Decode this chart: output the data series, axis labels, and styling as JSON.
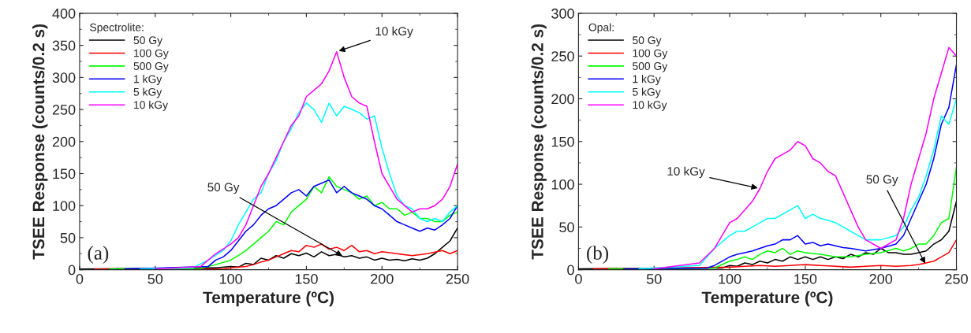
{
  "chart_data": [
    {
      "type": "line",
      "xlabel": "Temperature (ºC)",
      "ylabel": "TSEE Response (counts/0.2 s)",
      "legend_title": "Spectrolite:",
      "legend": "top left",
      "grid": false,
      "xlim": [
        0,
        250
      ],
      "ylim": [
        0,
        400
      ],
      "xticks": [
        0,
        50,
        100,
        150,
        200,
        250
      ],
      "yticks": [
        0,
        50,
        100,
        150,
        200,
        250,
        300,
        350,
        400
      ],
      "annotations": [
        "(a)",
        {
          "text": "10 kGy",
          "x": 170,
          "y": 340
        },
        {
          "text": "50 Gy",
          "x": 175,
          "y": 20
        }
      ],
      "series": [
        {
          "name": "50 Gy",
          "color": "#000000",
          "x": [
            0,
            90,
            100,
            105,
            110,
            115,
            120,
            125,
            130,
            135,
            140,
            145,
            150,
            155,
            160,
            165,
            170,
            175,
            180,
            185,
            190,
            195,
            200,
            205,
            210,
            215,
            220,
            225,
            230,
            235,
            240,
            245,
            250
          ],
          "values": [
            1,
            3,
            5,
            4,
            10,
            8,
            18,
            15,
            22,
            18,
            25,
            22,
            26,
            20,
            28,
            22,
            24,
            20,
            22,
            18,
            20,
            15,
            18,
            15,
            16,
            14,
            17,
            15,
            18,
            25,
            35,
            45,
            65
          ]
        },
        {
          "name": "100 Gy",
          "color": "#ff0000",
          "x": [
            10,
            95,
            100,
            110,
            115,
            120,
            125,
            130,
            135,
            140,
            145,
            150,
            155,
            160,
            165,
            170,
            175,
            180,
            185,
            190,
            195,
            200,
            210,
            220,
            230,
            240,
            245,
            250
          ],
          "values": [
            1,
            1,
            3,
            5,
            8,
            12,
            15,
            20,
            25,
            30,
            28,
            38,
            35,
            40,
            32,
            35,
            30,
            38,
            28,
            30,
            25,
            28,
            25,
            22,
            25,
            30,
            25,
            30
          ]
        },
        {
          "name": "500 Gy",
          "color": "#00ff00",
          "x": [
            20,
            80,
            90,
            100,
            105,
            110,
            115,
            120,
            125,
            130,
            135,
            140,
            145,
            150,
            155,
            160,
            165,
            170,
            175,
            180,
            185,
            190,
            195,
            200,
            205,
            210,
            215,
            220,
            225,
            230,
            235,
            240,
            245,
            250
          ],
          "values": [
            1,
            2,
            8,
            15,
            22,
            30,
            40,
            50,
            60,
            75,
            70,
            90,
            100,
            110,
            130,
            120,
            145,
            130,
            125,
            120,
            110,
            115,
            100,
            105,
            95,
            95,
            85,
            90,
            80,
            80,
            75,
            75,
            85,
            90
          ]
        },
        {
          "name": "1 kGy",
          "color": "#0000ff",
          "x": [
            30,
            85,
            90,
            95,
            100,
            105,
            110,
            115,
            120,
            125,
            130,
            135,
            140,
            145,
            150,
            155,
            160,
            165,
            170,
            175,
            180,
            185,
            190,
            195,
            200,
            205,
            210,
            215,
            220,
            225,
            230,
            235,
            240,
            245,
            250
          ],
          "values": [
            1,
            5,
            15,
            20,
            30,
            45,
            60,
            70,
            85,
            95,
            100,
            110,
            120,
            125,
            115,
            130,
            135,
            140,
            120,
            130,
            120,
            115,
            110,
            100,
            95,
            85,
            75,
            70,
            65,
            60,
            65,
            62,
            70,
            80,
            100
          ]
        },
        {
          "name": "5 kGy",
          "color": "#00ffff",
          "x": [
            40,
            75,
            85,
            95,
            100,
            105,
            110,
            115,
            120,
            125,
            130,
            135,
            140,
            145,
            150,
            155,
            160,
            165,
            170,
            175,
            180,
            185,
            190,
            195,
            200,
            205,
            210,
            215,
            220,
            225,
            230,
            235,
            240,
            245,
            250
          ],
          "values": [
            1,
            3,
            15,
            30,
            45,
            70,
            90,
            110,
            120,
            150,
            170,
            200,
            220,
            245,
            260,
            250,
            230,
            260,
            240,
            255,
            250,
            245,
            235,
            240,
            190,
            150,
            115,
            100,
            95,
            80,
            75,
            80,
            75,
            90,
            100
          ]
        },
        {
          "name": "10 kGy",
          "color": "#ff00ff",
          "x": [
            50,
            80,
            90,
            100,
            105,
            110,
            115,
            120,
            125,
            130,
            135,
            140,
            145,
            150,
            155,
            160,
            165,
            170,
            175,
            180,
            185,
            190,
            195,
            200,
            205,
            210,
            215,
            220,
            225,
            230,
            235,
            240,
            245,
            250
          ],
          "values": [
            1,
            5,
            25,
            40,
            50,
            70,
            100,
            130,
            150,
            175,
            200,
            225,
            240,
            270,
            280,
            290,
            310,
            340,
            300,
            270,
            260,
            255,
            200,
            150,
            130,
            110,
            100,
            90,
            95,
            95,
            100,
            110,
            130,
            165
          ]
        }
      ]
    },
    {
      "type": "line",
      "xlabel": "Temperature (ºC)",
      "ylabel": "TSEE Response (counts/0.2 s)",
      "legend_title": "Opal:",
      "legend": "top left",
      "grid": false,
      "xlim": [
        0,
        250
      ],
      "ylim": [
        0,
        300
      ],
      "xticks": [
        0,
        50,
        100,
        150,
        200,
        250
      ],
      "yticks": [
        0,
        50,
        100,
        150,
        200,
        250,
        300
      ],
      "annotations": [
        "(b)",
        {
          "text": "10 kGy",
          "x": 120,
          "y": 95
        },
        {
          "text": "50 Gy",
          "x": 230,
          "y": 5
        }
      ],
      "series": [
        {
          "name": "50 Gy",
          "color": "#000000",
          "x": [
            0,
            95,
            100,
            105,
            110,
            115,
            120,
            125,
            130,
            135,
            140,
            145,
            150,
            155,
            160,
            165,
            170,
            175,
            180,
            185,
            190,
            195,
            200,
            205,
            210,
            215,
            220,
            225,
            230,
            235,
            240,
            245,
            250
          ],
          "values": [
            1,
            2,
            5,
            4,
            8,
            6,
            10,
            8,
            12,
            10,
            15,
            12,
            15,
            12,
            15,
            12,
            15,
            13,
            18,
            15,
            20,
            18,
            25,
            20,
            20,
            18,
            18,
            20,
            22,
            30,
            35,
            45,
            80
          ]
        },
        {
          "name": "100 Gy",
          "color": "#ff0000",
          "x": [
            10,
            100,
            110,
            120,
            130,
            140,
            150,
            160,
            170,
            180,
            190,
            200,
            210,
            220,
            225,
            230,
            235,
            240,
            245,
            250
          ],
          "values": [
            1,
            3,
            4,
            5,
            4,
            5,
            6,
            5,
            4,
            3,
            4,
            5,
            4,
            5,
            6,
            8,
            10,
            15,
            20,
            35
          ]
        },
        {
          "name": "500 Gy",
          "color": "#00ff00",
          "x": [
            20,
            90,
            100,
            105,
            110,
            115,
            120,
            125,
            130,
            135,
            140,
            145,
            150,
            160,
            170,
            180,
            190,
            200,
            210,
            215,
            220,
            225,
            230,
            235,
            240,
            245,
            250
          ],
          "values": [
            1,
            2,
            10,
            12,
            15,
            12,
            18,
            22,
            20,
            25,
            18,
            22,
            20,
            18,
            15,
            15,
            18,
            20,
            25,
            22,
            25,
            30,
            30,
            40,
            55,
            60,
            120
          ]
        },
        {
          "name": "1 kGy",
          "color": "#0000ff",
          "x": [
            30,
            85,
            90,
            100,
            105,
            110,
            115,
            120,
            125,
            130,
            135,
            140,
            145,
            150,
            155,
            160,
            165,
            170,
            175,
            180,
            190,
            200,
            210,
            215,
            220,
            225,
            230,
            235,
            240,
            245,
            250
          ],
          "values": [
            1,
            2,
            5,
            15,
            18,
            20,
            22,
            25,
            28,
            30,
            35,
            35,
            40,
            30,
            32,
            28,
            30,
            28,
            26,
            25,
            22,
            25,
            30,
            40,
            60,
            80,
            100,
            130,
            170,
            190,
            240
          ]
        },
        {
          "name": "5 kGy",
          "color": "#00ffff",
          "x": [
            40,
            80,
            90,
            100,
            105,
            110,
            115,
            120,
            125,
            130,
            135,
            140,
            145,
            150,
            155,
            160,
            165,
            170,
            175,
            180,
            185,
            190,
            200,
            210,
            215,
            220,
            225,
            230,
            235,
            240,
            245,
            250
          ],
          "values": [
            1,
            5,
            25,
            40,
            45,
            45,
            50,
            55,
            60,
            60,
            65,
            70,
            75,
            60,
            65,
            60,
            58,
            55,
            50,
            45,
            40,
            35,
            35,
            40,
            50,
            70,
            85,
            110,
            140,
            180,
            170,
            200
          ]
        },
        {
          "name": "10 kGy",
          "color": "#ff00ff",
          "x": [
            50,
            80,
            90,
            100,
            105,
            110,
            115,
            120,
            125,
            130,
            135,
            140,
            145,
            150,
            155,
            160,
            165,
            170,
            175,
            180,
            185,
            190,
            200,
            210,
            215,
            220,
            225,
            230,
            235,
            240,
            245,
            250
          ],
          "values": [
            1,
            8,
            25,
            55,
            60,
            70,
            80,
            95,
            115,
            130,
            135,
            140,
            150,
            145,
            130,
            125,
            115,
            110,
            90,
            70,
            50,
            35,
            25,
            35,
            60,
            100,
            130,
            160,
            200,
            230,
            260,
            250
          ]
        }
      ]
    }
  ]
}
